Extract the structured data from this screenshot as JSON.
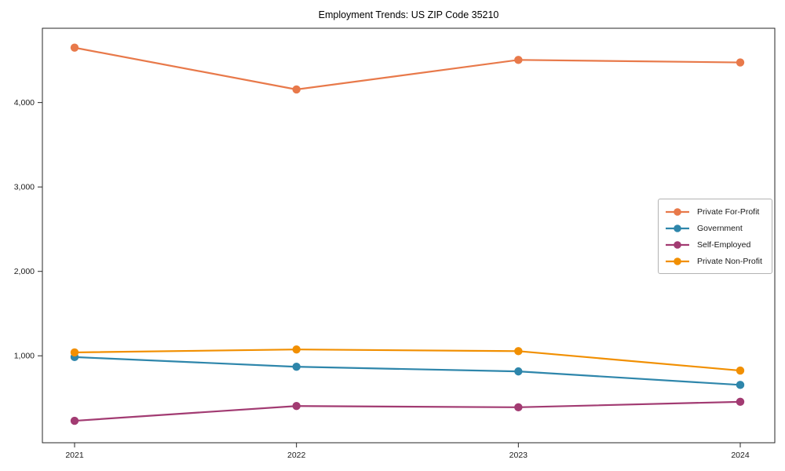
{
  "chart_data": {
    "type": "line",
    "title": "Employment Trends: US ZIP Code 35210",
    "categories": [
      "2021",
      "2022",
      "2023",
      "2024"
    ],
    "series": [
      {
        "name": "Private For-Profit",
        "color": "#E8794A",
        "values": [
          4650,
          4155,
          4505,
          4475
        ]
      },
      {
        "name": "Government",
        "color": "#2E86AB",
        "values": [
          985,
          870,
          815,
          655
        ]
      },
      {
        "name": "Self-Employed",
        "color": "#A23B72",
        "values": [
          230,
          405,
          390,
          455
        ]
      },
      {
        "name": "Private Non-Profit",
        "color": "#F18F01",
        "values": [
          1040,
          1075,
          1055,
          825
        ]
      }
    ],
    "xlabel": "",
    "ylabel": "",
    "ylim": [
      -30,
      4880
    ],
    "y_ticks": [
      {
        "value": 1000,
        "label": "1,000"
      },
      {
        "value": 2000,
        "label": "2,000"
      },
      {
        "value": 3000,
        "label": "3,000"
      },
      {
        "value": 4000,
        "label": "4,000"
      }
    ],
    "grid": false,
    "legend_position": "center-right",
    "background_color": "#ffffff",
    "axis_color": "#262626",
    "text_color": "#1a1a1a"
  }
}
